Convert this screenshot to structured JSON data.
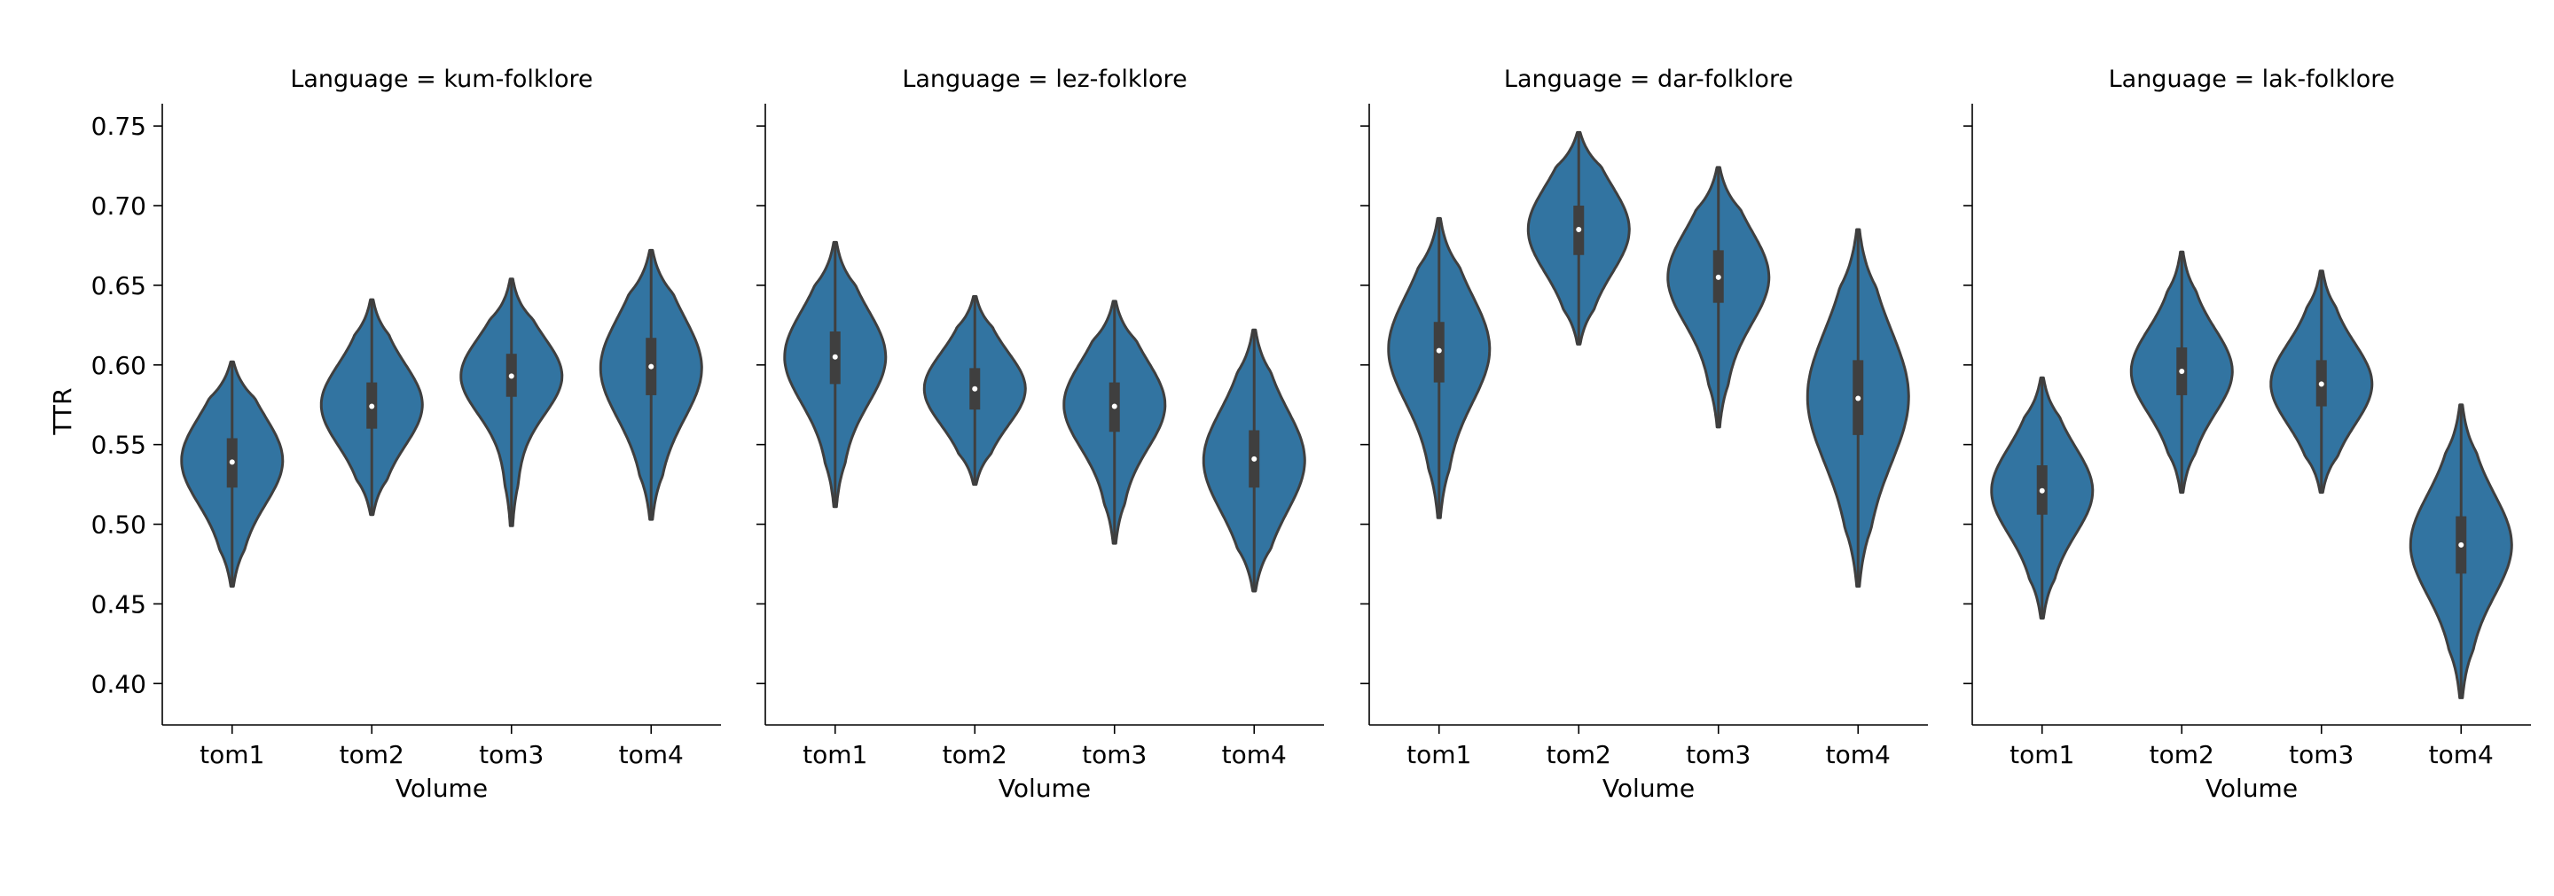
{
  "chart_data": {
    "type": "violin",
    "layout": "faceted",
    "ylabel": "TTR",
    "xlabel": "Volume",
    "ylim": [
      0.374,
      0.764
    ],
    "yticks": [
      "0.40",
      "0.45",
      "0.50",
      "0.55",
      "0.60",
      "0.65",
      "0.70",
      "0.75"
    ],
    "categories": [
      "tom1",
      "tom2",
      "tom3",
      "tom4"
    ],
    "colors": {
      "violin_fill": "#3274a1",
      "violin_edge": "#3f3f3f",
      "box": "#3f3f3f",
      "median": "#ffffff"
    },
    "panels": [
      {
        "title": "Language = kum-folklore",
        "violins": [
          {
            "category": "tom1",
            "min": 0.461,
            "max": 0.602,
            "q1": 0.523,
            "median": 0.539,
            "q3": 0.554,
            "peak": 0.54
          },
          {
            "category": "tom2",
            "min": 0.506,
            "max": 0.641,
            "q1": 0.56,
            "median": 0.574,
            "q3": 0.589,
            "peak": 0.575
          },
          {
            "category": "tom3",
            "min": 0.499,
            "max": 0.654,
            "q1": 0.58,
            "median": 0.593,
            "q3": 0.607,
            "peak": 0.593
          },
          {
            "category": "tom4",
            "min": 0.503,
            "max": 0.672,
            "q1": 0.581,
            "median": 0.599,
            "q3": 0.617,
            "peak": 0.598
          }
        ]
      },
      {
        "title": "Language = lez-folklore",
        "violins": [
          {
            "category": "tom1",
            "min": 0.511,
            "max": 0.677,
            "q1": 0.588,
            "median": 0.605,
            "q3": 0.621,
            "peak": 0.605
          },
          {
            "category": "tom2",
            "min": 0.525,
            "max": 0.643,
            "q1": 0.572,
            "median": 0.585,
            "q3": 0.598,
            "peak": 0.585
          },
          {
            "category": "tom3",
            "min": 0.488,
            "max": 0.64,
            "q1": 0.558,
            "median": 0.574,
            "q3": 0.589,
            "peak": 0.575
          },
          {
            "category": "tom4",
            "min": 0.458,
            "max": 0.622,
            "q1": 0.523,
            "median": 0.541,
            "q3": 0.559,
            "peak": 0.54
          }
        ]
      },
      {
        "title": "Language = dar-folklore",
        "violins": [
          {
            "category": "tom1",
            "min": 0.504,
            "max": 0.692,
            "q1": 0.589,
            "median": 0.609,
            "q3": 0.627,
            "peak": 0.61
          },
          {
            "category": "tom2",
            "min": 0.613,
            "max": 0.746,
            "q1": 0.669,
            "median": 0.685,
            "q3": 0.7,
            "peak": 0.685
          },
          {
            "category": "tom3",
            "min": 0.561,
            "max": 0.724,
            "q1": 0.639,
            "median": 0.655,
            "q3": 0.672,
            "peak": 0.655
          },
          {
            "category": "tom4",
            "min": 0.461,
            "max": 0.685,
            "q1": 0.556,
            "median": 0.579,
            "q3": 0.603,
            "peak": 0.58
          }
        ]
      },
      {
        "title": "Language = lak-folklore",
        "violins": [
          {
            "category": "tom1",
            "min": 0.441,
            "max": 0.592,
            "q1": 0.506,
            "median": 0.521,
            "q3": 0.537,
            "peak": 0.521
          },
          {
            "category": "tom2",
            "min": 0.52,
            "max": 0.671,
            "q1": 0.581,
            "median": 0.596,
            "q3": 0.611,
            "peak": 0.596
          },
          {
            "category": "tom3",
            "min": 0.52,
            "max": 0.659,
            "q1": 0.574,
            "median": 0.588,
            "q3": 0.603,
            "peak": 0.588
          },
          {
            "category": "tom4",
            "min": 0.391,
            "max": 0.575,
            "q1": 0.469,
            "median": 0.487,
            "q3": 0.505,
            "peak": 0.487
          }
        ]
      }
    ]
  }
}
